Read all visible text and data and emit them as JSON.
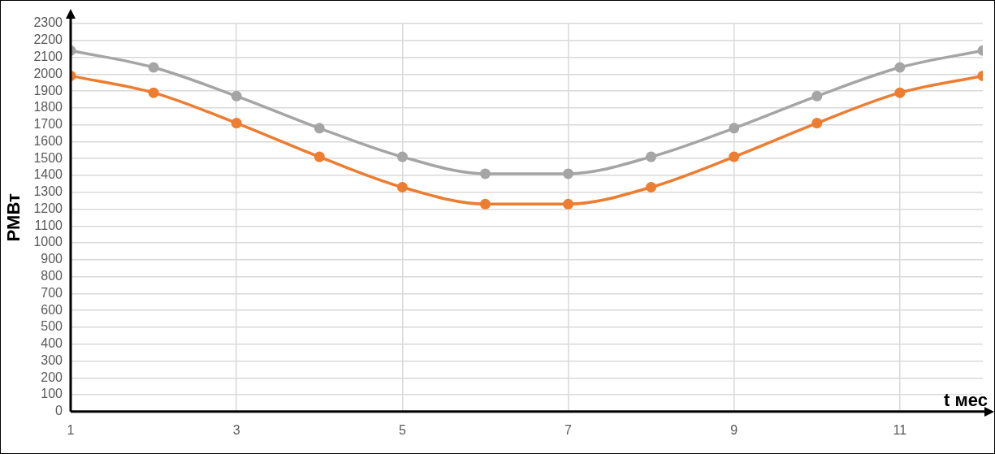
{
  "chart_data": {
    "type": "line",
    "xlabel": "t мес",
    "ylabel": "PМВт",
    "x": [
      1,
      2,
      3,
      4,
      5,
      6,
      7,
      8,
      9,
      10,
      11,
      12
    ],
    "series": [
      {
        "color": "#a5a5a5",
        "values": [
          2140,
          2040,
          1870,
          1680,
          1510,
          1410,
          1410,
          1510,
          1680,
          1870,
          2040,
          2140
        ]
      },
      {
        "color": "#ed7d31",
        "values": [
          1990,
          1890,
          1710,
          1510,
          1330,
          1230,
          1230,
          1330,
          1510,
          1710,
          1890,
          1990
        ]
      }
    ],
    "xlim": [
      1,
      12
    ],
    "xticks": [
      1,
      3,
      5,
      7,
      9,
      11
    ],
    "ylim": [
      0,
      2300
    ],
    "yticks": [
      0,
      100,
      200,
      300,
      400,
      500,
      600,
      700,
      800,
      900,
      1000,
      1100,
      1200,
      1300,
      1400,
      1500,
      1600,
      1700,
      1800,
      1900,
      2000,
      2100,
      2200,
      2300
    ],
    "grid": true,
    "legend": false,
    "marker": "circle",
    "line_style": "solid"
  }
}
